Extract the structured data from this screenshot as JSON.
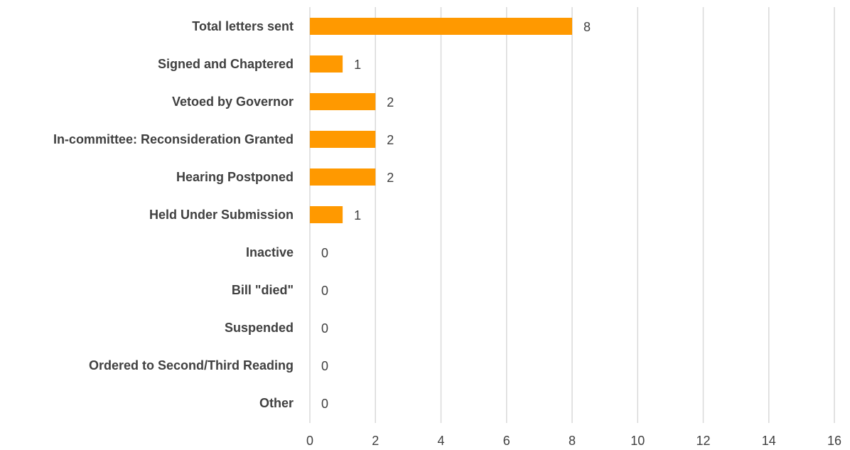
{
  "chart_data": {
    "type": "bar",
    "orientation": "horizontal",
    "title": "",
    "xlabel": "",
    "ylabel": "",
    "categories": [
      "Total letters sent",
      "Signed and Chaptered",
      "Vetoed by Governor",
      "In-committee: Reconsideration Granted",
      "Hearing Postponed",
      "Held Under Submission",
      "Inactive",
      "Bill \"died\"",
      "Suspended",
      "Ordered to Second/Third Reading",
      "Other"
    ],
    "values": [
      8,
      1,
      2,
      2,
      2,
      1,
      0,
      0,
      0,
      0,
      0
    ],
    "data_labels": [
      "8",
      "1",
      "2",
      "2",
      "2",
      "1",
      "0",
      "0",
      "0",
      "0",
      "0"
    ],
    "xlim": [
      0,
      16
    ],
    "x_ticks": [
      "0",
      "2",
      "4",
      "6",
      "8",
      "10",
      "12",
      "14",
      "16"
    ],
    "grid": "vertical",
    "legend": "none",
    "colors": {
      "bar": "#ff9900",
      "text": "#404040",
      "grid": "#d9d9d9"
    }
  }
}
